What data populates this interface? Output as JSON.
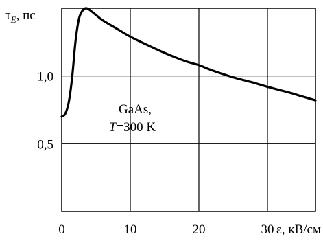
{
  "chart_data": {
    "type": "line",
    "ylabel_symbol": "τ",
    "ylabel_sub": "E",
    "ylabel_unit": ", пс",
    "xlabel": "ε, кВ/см",
    "xlim": [
      0,
      37
    ],
    "ylim": [
      0,
      1.5
    ],
    "x_ticks": [
      {
        "value": 0,
        "label": "0"
      },
      {
        "value": 10,
        "label": "10"
      },
      {
        "value": 20,
        "label": "20"
      },
      {
        "value": 30,
        "label": "30"
      }
    ],
    "y_ticks": [
      {
        "value": 0.5,
        "label": "0,5"
      },
      {
        "value": 1.0,
        "label": "1,0"
      }
    ],
    "grid": true,
    "annotation_line1": "GaAs,",
    "annotation_T": "T",
    "annotation_rest": "=300 K",
    "series": [
      {
        "x": [
          0,
          0.5,
          1.0,
          1.5,
          2.0,
          2.5,
          3.0,
          3.5,
          4.0,
          5.0,
          6.0,
          8.0,
          10.0,
          12.0,
          15.0,
          18.0,
          20.0,
          22.0,
          25.0,
          28.0,
          30.0,
          33.0,
          35.0,
          37.0
        ],
        "y": [
          0.7,
          0.72,
          0.8,
          0.98,
          1.25,
          1.42,
          1.48,
          1.5,
          1.49,
          1.45,
          1.41,
          1.35,
          1.29,
          1.24,
          1.17,
          1.11,
          1.08,
          1.04,
          0.99,
          0.95,
          0.92,
          0.88,
          0.85,
          0.82
        ]
      }
    ]
  }
}
